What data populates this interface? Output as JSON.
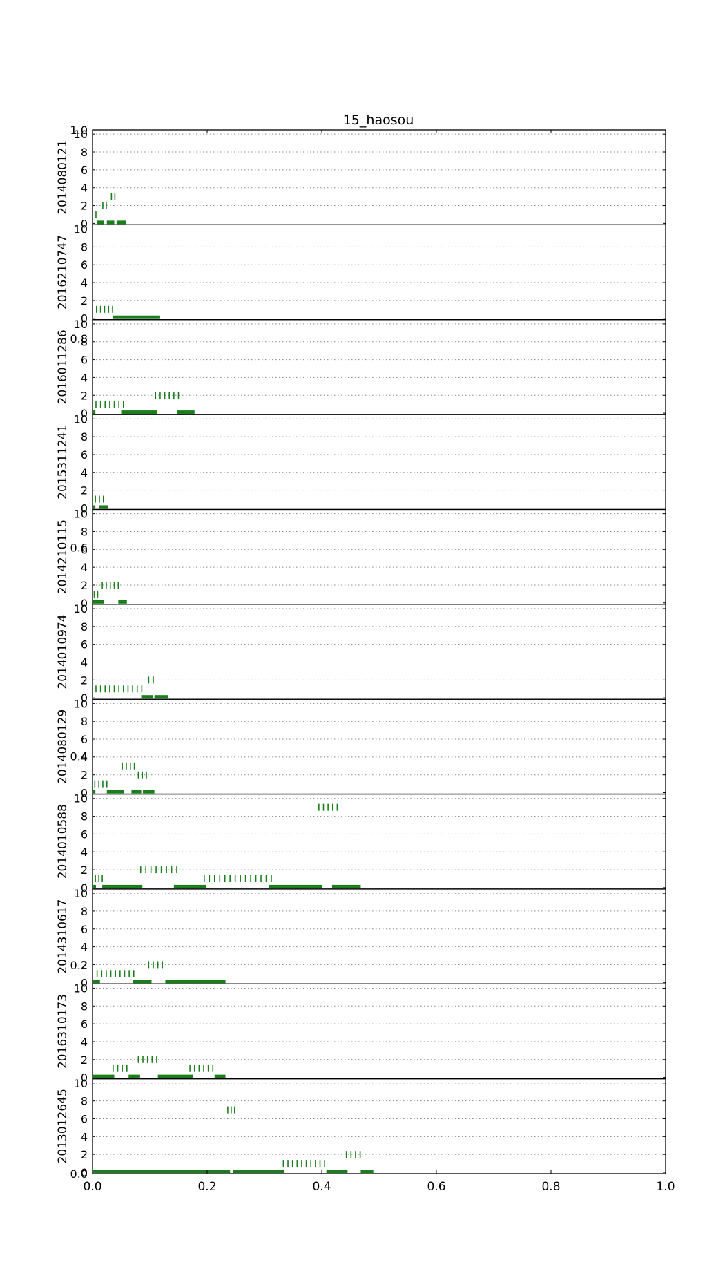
{
  "chart_data": {
    "type": "scatter",
    "title": "15_haosou",
    "xlim": [
      0.0,
      1.0
    ],
    "x_ticks": [
      "0.0",
      "0.2",
      "0.4",
      "0.6",
      "0.8",
      "1.0"
    ],
    "ylim": [
      0,
      10
    ],
    "y_ticks": [
      "0",
      "2",
      "4",
      "6",
      "8",
      "10"
    ],
    "grid": "horizontal dotted",
    "background_ticks": {
      "y": [
        "0.0",
        "0.2",
        "0.4",
        "0.6",
        "0.8",
        "1.0"
      ]
    },
    "colors": {
      "marks": "#1a7f1a",
      "spine": "#000000",
      "grid": "#888888"
    },
    "panels": [
      {
        "label": "2014080121",
        "bars": [
          [
            0.008,
            0.02
          ],
          [
            0.025,
            0.038
          ],
          [
            0.042,
            0.058
          ]
        ],
        "ticks": [
          {
            "y": 1,
            "x": [
              0.006
            ]
          },
          {
            "y": 2,
            "x": [
              0.018,
              0.024
            ]
          },
          {
            "y": 3,
            "x": [
              0.033,
              0.039
            ]
          }
        ]
      },
      {
        "label": "2016210747",
        "bars": [
          [
            0.035,
            0.118
          ]
        ],
        "ticks": [
          {
            "y": 1,
            "x": [
              0.007,
              0.014,
              0.021,
              0.028,
              0.035
            ]
          }
        ]
      },
      {
        "label": "2016011286",
        "bars": [
          [
            0.0,
            0.005
          ],
          [
            0.05,
            0.113
          ],
          [
            0.148,
            0.178
          ]
        ],
        "ticks": [
          {
            "y": 1,
            "x": [
              0.006,
              0.014,
              0.022,
              0.03,
              0.038,
              0.046,
              0.054
            ]
          },
          {
            "y": 2,
            "x": [
              0.11,
              0.118,
              0.126,
              0.134,
              0.142,
              0.15
            ]
          }
        ]
      },
      {
        "label": "2015311241",
        "bars": [
          [
            0.0,
            0.005
          ],
          [
            0.012,
            0.027
          ]
        ],
        "ticks": [
          {
            "y": 1,
            "x": [
              0.005,
              0.012,
              0.019
            ]
          }
        ]
      },
      {
        "label": "2014210115",
        "bars": [
          [
            0.0,
            0.02
          ],
          [
            0.045,
            0.06
          ]
        ],
        "ticks": [
          {
            "y": 1,
            "x": [
              0.003,
              0.009
            ]
          },
          {
            "y": 2,
            "x": [
              0.017,
              0.024,
              0.031,
              0.038,
              0.045
            ]
          }
        ]
      },
      {
        "label": "2014010974",
        "bars": [
          [
            0.085,
            0.105
          ],
          [
            0.108,
            0.132
          ]
        ],
        "ticks": [
          {
            "y": 1,
            "x": [
              0.006,
              0.014,
              0.022,
              0.03,
              0.038,
              0.046,
              0.054,
              0.062,
              0.07,
              0.078,
              0.086
            ]
          },
          {
            "y": 2,
            "x": [
              0.098,
              0.106
            ]
          }
        ]
      },
      {
        "label": "2014080129",
        "bars": [
          [
            0.0,
            0.005
          ],
          [
            0.025,
            0.055
          ],
          [
            0.068,
            0.085
          ],
          [
            0.088,
            0.108
          ]
        ],
        "ticks": [
          {
            "y": 1,
            "x": [
              0.004,
              0.011,
              0.018,
              0.025
            ]
          },
          {
            "y": 2,
            "x": [
              0.08,
              0.087,
              0.094
            ]
          },
          {
            "y": 3,
            "x": [
              0.052,
              0.059,
              0.066,
              0.073
            ]
          }
        ]
      },
      {
        "label": "2014010588",
        "bars": [
          [
            0.0,
            0.006
          ],
          [
            0.017,
            0.087
          ],
          [
            0.142,
            0.198
          ],
          [
            0.308,
            0.4
          ],
          [
            0.418,
            0.468
          ]
        ],
        "ticks": [
          {
            "y": 1,
            "x": [
              0.005,
              0.011,
              0.017
            ]
          },
          {
            "y": 2,
            "x": [
              0.084,
              0.093,
              0.102,
              0.111,
              0.12,
              0.129,
              0.138,
              0.147
            ]
          },
          {
            "y": 1,
            "x": [
              0.195,
              0.204,
              0.213,
              0.222,
              0.231,
              0.24,
              0.249,
              0.258,
              0.267,
              0.276,
              0.285,
              0.294,
              0.303,
              0.312
            ]
          },
          {
            "y": 9,
            "x": [
              0.395,
              0.403,
              0.411,
              0.419,
              0.427
            ]
          }
        ]
      },
      {
        "label": "2014310617",
        "bars": [
          [
            0.0,
            0.013
          ],
          [
            0.071,
            0.103
          ],
          [
            0.127,
            0.232
          ]
        ],
        "ticks": [
          {
            "y": 1,
            "x": [
              0.008,
              0.016,
              0.024,
              0.032,
              0.04,
              0.048,
              0.056,
              0.064,
              0.072
            ]
          },
          {
            "y": 2,
            "x": [
              0.098,
              0.106,
              0.114,
              0.122
            ]
          }
        ]
      },
      {
        "label": "2016310173",
        "bars": [
          [
            0.0,
            0.038
          ],
          [
            0.063,
            0.083
          ],
          [
            0.114,
            0.175
          ],
          [
            0.213,
            0.232
          ]
        ],
        "ticks": [
          {
            "y": 1,
            "x": [
              0.036,
              0.044,
              0.052,
              0.06
            ]
          },
          {
            "y": 2,
            "x": [
              0.08,
              0.088,
              0.096,
              0.104,
              0.112
            ]
          },
          {
            "y": 1,
            "x": [
              0.17,
              0.178,
              0.186,
              0.194,
              0.202,
              0.21
            ]
          }
        ]
      },
      {
        "label": "2013012645",
        "bars": [
          [
            0.0,
            0.24
          ],
          [
            0.245,
            0.335
          ],
          [
            0.408,
            0.445
          ],
          [
            0.468,
            0.49
          ]
        ],
        "ticks": [
          {
            "y": 7,
            "x": [
              0.236,
              0.242,
              0.248
            ]
          },
          {
            "y": 1,
            "x": [
              0.333,
              0.341,
              0.349,
              0.357,
              0.365,
              0.373,
              0.381,
              0.389,
              0.397,
              0.405
            ]
          },
          {
            "y": 2,
            "x": [
              0.443,
              0.451,
              0.459,
              0.467
            ]
          }
        ]
      }
    ]
  }
}
